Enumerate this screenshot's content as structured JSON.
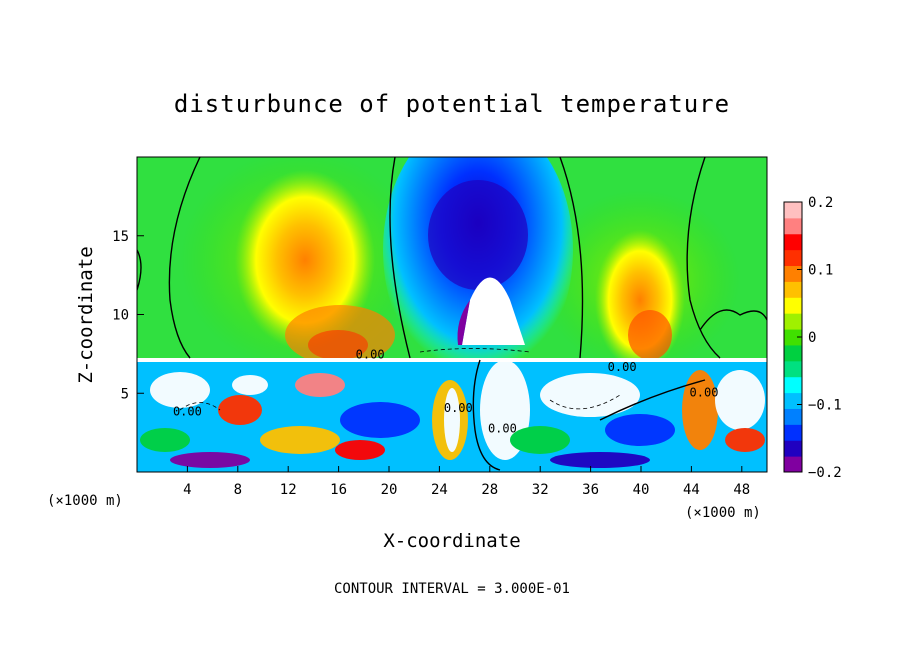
{
  "chart_data": {
    "type": "heatmap",
    "title": "disturbunce of potential temperature",
    "xlabel": "X-coordinate",
    "ylabel": "Z-coordinate",
    "x_unit": "(×1000 m)",
    "y_unit": "(×1000 m)",
    "footer": "CONTOUR INTERVAL = 3.000E-01",
    "xlim": [
      0,
      50
    ],
    "ylim": [
      0,
      20
    ],
    "x_ticks": [
      4,
      8,
      12,
      16,
      20,
      24,
      28,
      32,
      36,
      40,
      44,
      48
    ],
    "y_ticks": [
      5,
      10,
      15
    ],
    "colorbar": {
      "min": -0.2,
      "max": 0.2,
      "ticks": [
        -0.2,
        -0.1,
        0,
        0.1,
        0.2
      ],
      "tick_labels": [
        "−0.2",
        "−0.1",
        "0",
        "0.1",
        "0.2"
      ],
      "colors": [
        "#8000a0",
        "#2000c0",
        "#0030ff",
        "#0080ff",
        "#00c0ff",
        "#00ffff",
        "#00e080",
        "#00d040",
        "#40e000",
        "#a0f000",
        "#ffff00",
        "#ffc000",
        "#ff8000",
        "#ff3000",
        "#ff0000",
        "#ff8080",
        "#ffc0c0"
      ]
    },
    "contour_labels": [
      {
        "text": "0.00",
        "x": 18.5,
        "z": 7.2
      },
      {
        "text": "0.00",
        "x": 4.0,
        "z": 3.6
      },
      {
        "text": "0.00",
        "x": 25.5,
        "z": 3.8
      },
      {
        "text": "0.00",
        "x": 29.0,
        "z": 2.5
      },
      {
        "text": "0.00",
        "x": 38.5,
        "z": 6.4
      },
      {
        "text": "0.00",
        "x": 45.0,
        "z": 4.8
      }
    ],
    "features": [
      {
        "type": "cold_plume",
        "x": 28,
        "z": 15,
        "value": -0.18
      },
      {
        "type": "warm_region",
        "x": 13,
        "z": 14,
        "value": 0.1
      },
      {
        "type": "warm_region",
        "x": 40,
        "z": 11,
        "value": 0.1
      },
      {
        "type": "warm_base",
        "x": 17,
        "z": 8,
        "value": 0.12
      }
    ]
  }
}
